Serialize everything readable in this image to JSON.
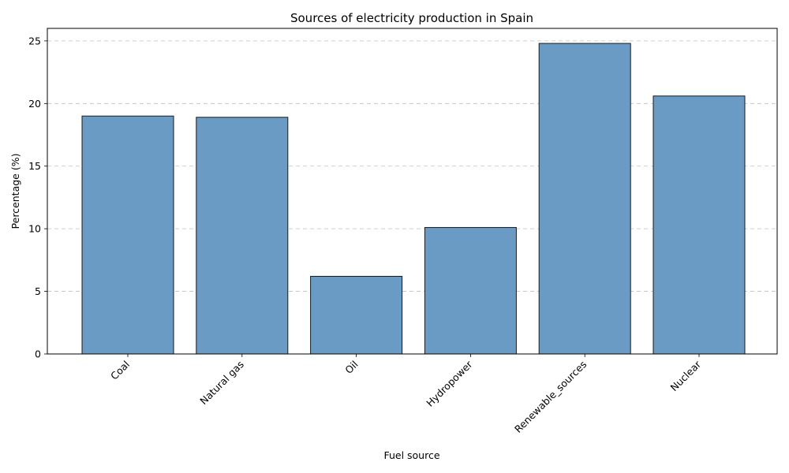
{
  "chart_data": {
    "type": "bar",
    "title": "Sources of electricity production in Spain",
    "xlabel": "Fuel source",
    "ylabel": "Percentage (%)",
    "categories": [
      "Coal",
      "Natural gas",
      "Oil",
      "Hydropower",
      "Renewable_sources",
      "Nuclear"
    ],
    "values": [
      19.0,
      18.9,
      6.2,
      10.1,
      24.8,
      20.6
    ],
    "ylim": [
      0,
      26
    ],
    "yticks": [
      0,
      5,
      10,
      15,
      20,
      25
    ],
    "grid": "y-dashed",
    "legend": "none",
    "colors": {
      "bar": "#6a9bc4",
      "edge": "#1a1a1a"
    }
  }
}
